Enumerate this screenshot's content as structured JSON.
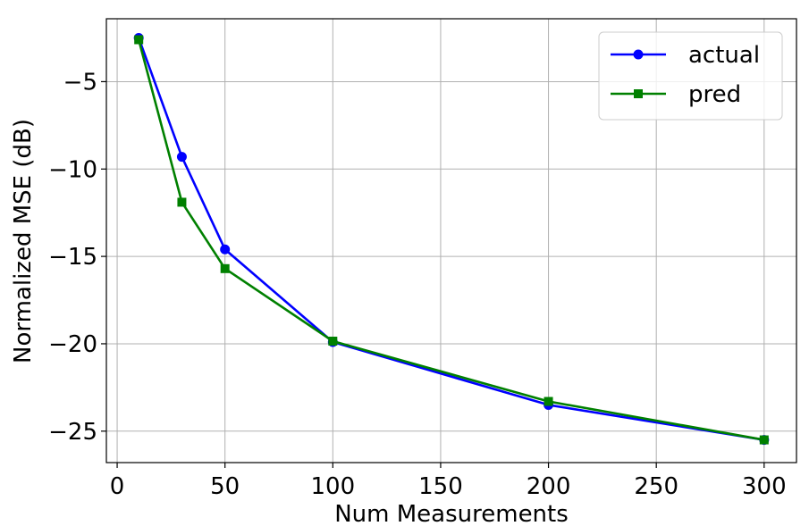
{
  "chart_data": {
    "type": "line",
    "title": "",
    "xlabel": "Num Measurements",
    "ylabel": "Normalized MSE (dB)",
    "xlim": [
      -5,
      315
    ],
    "ylim": [
      -26.8,
      -1.4
    ],
    "xticks": [
      0,
      50,
      100,
      150,
      200,
      250,
      300
    ],
    "yticks": [
      -5,
      -10,
      -15,
      -20,
      -25
    ],
    "xtick_labels": [
      "0",
      "50",
      "100",
      "150",
      "200",
      "250",
      "300"
    ],
    "ytick_labels": [
      "−5",
      "−10",
      "−15",
      "−20",
      "−25"
    ],
    "grid": true,
    "legend_position": "top-right",
    "x": [
      10,
      30,
      50,
      100,
      200,
      300
    ],
    "series": [
      {
        "name": "actual",
        "color": "#0000ff",
        "marker": "circle",
        "values": [
          -2.5,
          -9.3,
          -14.6,
          -19.9,
          -23.5,
          -25.5
        ]
      },
      {
        "name": "pred",
        "color": "#008000",
        "marker": "square",
        "values": [
          -2.6,
          -11.9,
          -15.7,
          -19.85,
          -23.3,
          -25.5
        ]
      }
    ]
  }
}
